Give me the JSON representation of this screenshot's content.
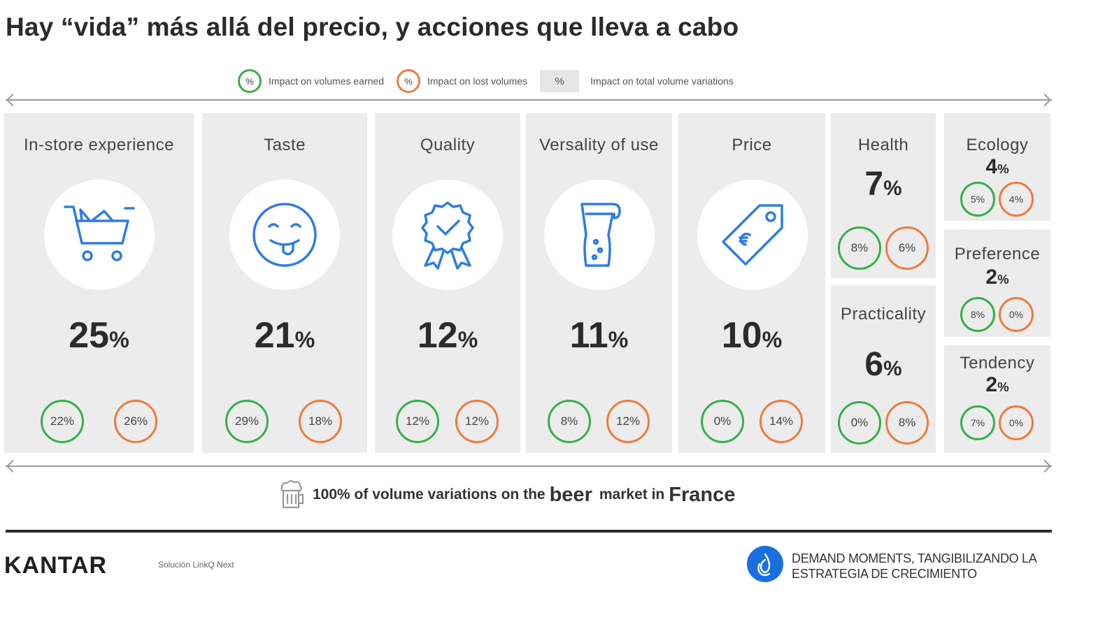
{
  "title": "Hay “vida” más allá del precio, y acciones que lleva a cabo",
  "legend": {
    "earned_symbol": "%",
    "earned_label": "Impact on volumes earned",
    "lost_symbol": "%",
    "lost_label": "Impact on lost volumes",
    "total_symbol": "%",
    "total_label": "Impact on total volume variations"
  },
  "colors": {
    "earned": "#34b04a",
    "lost": "#ef7b3d",
    "icon": "#2f7de1",
    "panel": "#ececec"
  },
  "drivers": {
    "instore": {
      "title": "In-store experience",
      "total": "25",
      "earned": "22%",
      "lost": "26%",
      "icon": "shopping-cart-icon"
    },
    "taste": {
      "title": "Taste",
      "total": "21",
      "earned": "29%",
      "lost": "18%",
      "icon": "tongue-face-icon"
    },
    "quality": {
      "title": "Quality",
      "total": "12",
      "earned": "12%",
      "lost": "12%",
      "icon": "award-badge-icon"
    },
    "versality": {
      "title": "Versality of use",
      "total": "11",
      "earned": "8%",
      "lost": "12%",
      "icon": "beer-glass-icon"
    },
    "price": {
      "title": "Price",
      "total": "10",
      "earned": "0%",
      "lost": "14%",
      "icon": "price-tag-icon"
    },
    "health": {
      "title": "Health",
      "total": "7",
      "earned": "8%",
      "lost": "6%"
    },
    "practicality": {
      "title": "Practicality",
      "total": "6",
      "earned": "0%",
      "lost": "8%"
    },
    "ecology": {
      "title": "Ecology",
      "total": "4",
      "earned": "5%",
      "lost": "4%"
    },
    "preference": {
      "title": "Preference",
      "total": "2",
      "earned": "8%",
      "lost": "0%"
    },
    "tendency": {
      "title": "Tendency",
      "total": "2",
      "earned": "7%",
      "lost": "0%"
    }
  },
  "pct_sign": "%",
  "footer": {
    "line_part1": "100% of volume variations on the",
    "line_part2": "beer",
    "line_part3": "market in",
    "line_part4": "France",
    "brand": "KANTAR",
    "solution": "Solución LinkQ Next",
    "tagline_line1": "DEMAND MOMENTS, TANGIBILIZANDO LA",
    "tagline_line2": "ESTRATEGIA DE CRECIMIENTO"
  }
}
